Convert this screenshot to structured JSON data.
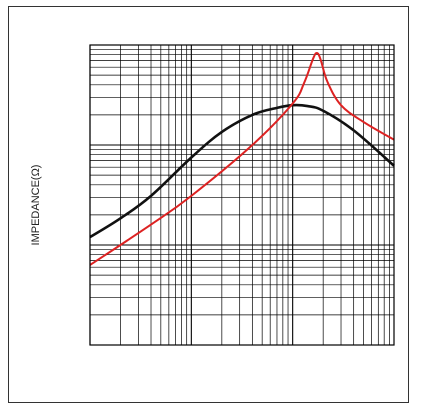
{
  "chart_data": {
    "type": "line",
    "xscale": "log",
    "yscale": "log",
    "x_decades": 3,
    "y_decades": 3,
    "xlim": [
      1,
      1000
    ],
    "ylim": [
      1,
      1000
    ],
    "xlabel": "",
    "ylabel": "IMPEDANCE(Ω)",
    "grid": true,
    "legend": "none",
    "series": [
      {
        "color": "#111111",
        "x": [
          1,
          2,
          4,
          10,
          20,
          40,
          70,
          100,
          140,
          200,
          400,
          1000
        ],
        "y": [
          12,
          18.5,
          31,
          75,
          135,
          200,
          235,
          250,
          245,
          220,
          140,
          62
        ]
      },
      {
        "color": "#dd2222",
        "x": [
          1,
          4,
          10,
          40,
          100,
          130,
          160,
          175,
          190,
          220,
          300,
          500,
          1000
        ],
        "y": [
          6.3,
          16,
          31,
          100,
          260,
          420,
          740,
          830,
          700,
          430,
          250,
          170,
          113
        ]
      }
    ]
  }
}
